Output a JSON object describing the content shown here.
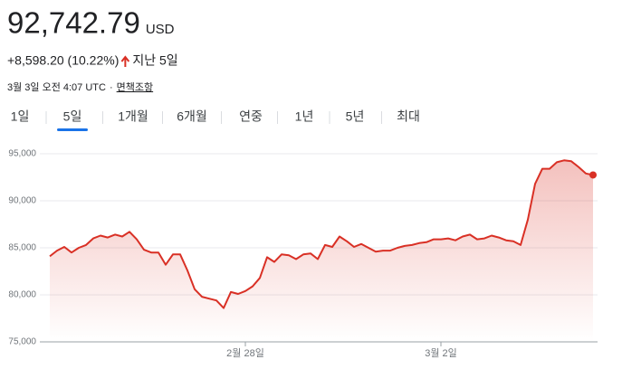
{
  "header": {
    "price": "92,742.79",
    "currency": "USD",
    "change": "+8,598.20 (10.22%)",
    "period": "지난 5일",
    "timestamp": "3월 3일 오전 4:07 UTC",
    "separator": "·",
    "disclaimer": "면책조항"
  },
  "tabs": [
    "1일",
    "5일",
    "1개월",
    "6개월",
    "연중",
    "1년",
    "5년",
    "최대"
  ],
  "selected_tab": 1,
  "chart_data": {
    "type": "line",
    "color": "#d93025",
    "categories": [
      null,
      null,
      null,
      null,
      null,
      null,
      null,
      null,
      null,
      null,
      null,
      null,
      null,
      null,
      null,
      null,
      null,
      null,
      null,
      null,
      null,
      null,
      null,
      null,
      null,
      null,
      null,
      "2월 28일",
      null,
      null,
      null,
      null,
      null,
      null,
      null,
      null,
      null,
      null,
      null,
      null,
      null,
      null,
      null,
      null,
      null,
      null,
      null,
      null,
      null,
      null,
      null,
      null,
      null,
      null,
      "3월 2일",
      null,
      null,
      null,
      null,
      null,
      null,
      null,
      null,
      null,
      null,
      null,
      null,
      null,
      null,
      null,
      null,
      null,
      null,
      null,
      null,
      null
    ],
    "values": [
      84100,
      84700,
      85100,
      84500,
      85000,
      85300,
      86000,
      86300,
      86100,
      86400,
      86200,
      86700,
      85900,
      84800,
      84500,
      84500,
      83200,
      84300,
      84300,
      82600,
      80600,
      79800,
      79600,
      79400,
      78600,
      80300,
      80100,
      80400,
      80900,
      81800,
      84000,
      83500,
      84300,
      84200,
      83800,
      84300,
      84400,
      83800,
      85300,
      85100,
      86200,
      85700,
      85100,
      85400,
      85000,
      84600,
      84700,
      84700,
      85000,
      85200,
      85300,
      85500,
      85600,
      85900,
      85900,
      86000,
      85800,
      86200,
      86400,
      85900,
      86000,
      86300,
      86100,
      85800,
      85700,
      85300,
      88000,
      91800,
      93400,
      93400,
      94100,
      94300,
      94200,
      93600,
      92900,
      92742.79
    ],
    "ylim": [
      75000,
      95000
    ],
    "yticks": [
      {
        "value": 75000,
        "label": "75,000"
      },
      {
        "value": 80000,
        "label": "80,000"
      },
      {
        "value": 85000,
        "label": "85,000"
      },
      {
        "value": 90000,
        "label": "90,000"
      },
      {
        "value": 95000,
        "label": "95,000"
      }
    ],
    "grid": true
  }
}
